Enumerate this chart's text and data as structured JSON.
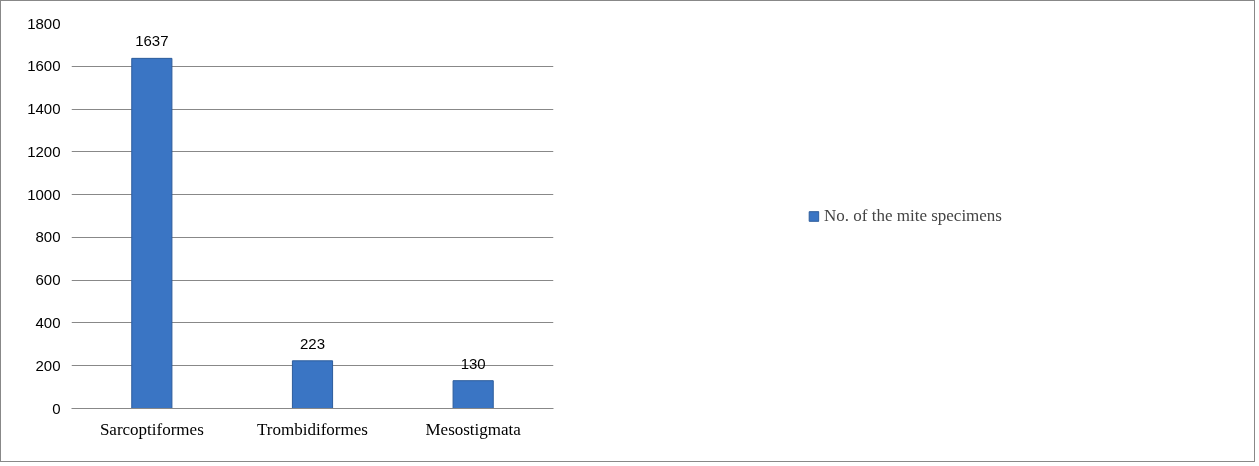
{
  "chart_data": {
    "type": "bar",
    "categories": [
      "Sarcoptiformes",
      "Trombidiformes",
      "Mesostigmata"
    ],
    "series": [
      {
        "name": "No. of the mite specimens",
        "color": "#3a75c4",
        "values": [
          1637,
          223,
          130
        ]
      }
    ],
    "ylim": [
      0,
      1800
    ],
    "yticks": [
      0,
      200,
      400,
      600,
      800,
      1000,
      1200,
      1400,
      1600,
      1800
    ],
    "grid": "y",
    "legend": "right",
    "data_labels": true
  }
}
